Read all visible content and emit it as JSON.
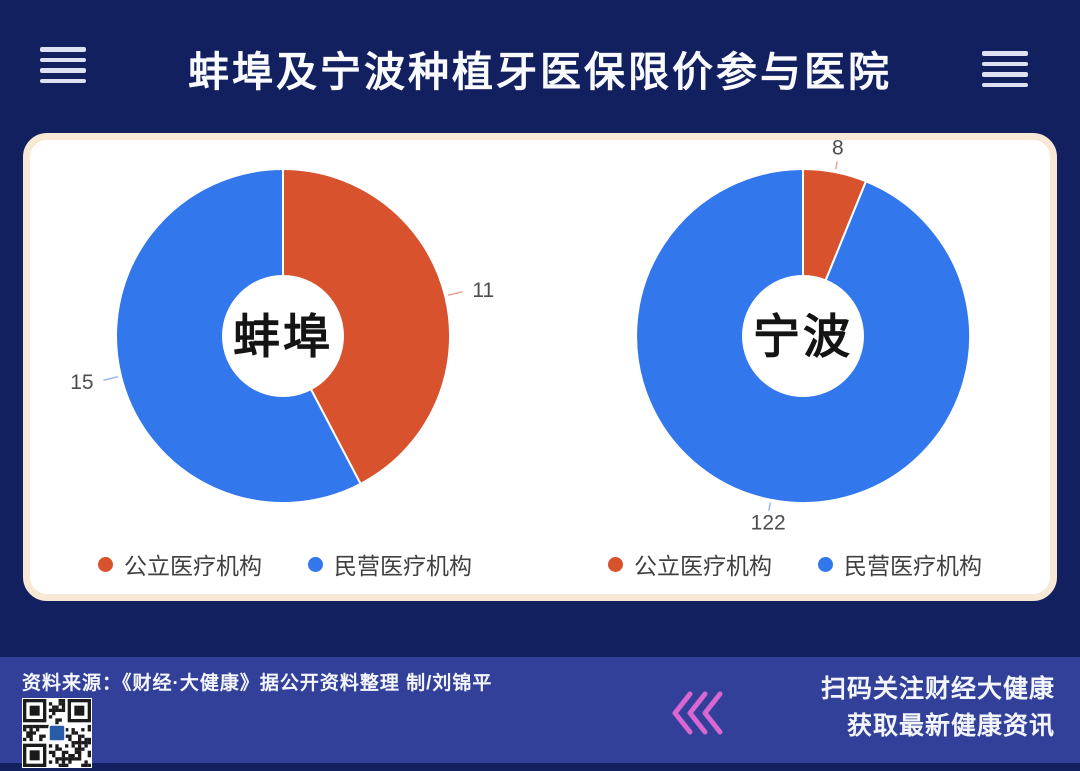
{
  "header": {
    "title": "蚌埠及宁波种植牙医保限价参与医院",
    "left_icon": "menu-lines-icon",
    "right_icon": "menu-lines-icon"
  },
  "chart_data": [
    {
      "type": "pie",
      "variant": "donut",
      "title": "蚌埠",
      "labels": [
        "公立医疗机构",
        "民营医疗机构"
      ],
      "values": [
        11,
        15
      ],
      "data_labels": [
        "11",
        "15"
      ],
      "colors": [
        "#D8522D",
        "#3377EC"
      ],
      "start_angle_deg": -90,
      "direction": "clockwise",
      "legend_position": "bottom",
      "inner_label_color": "#141414",
      "value_label_color": "#4D4D4D"
    },
    {
      "type": "pie",
      "variant": "donut",
      "title": "宁波",
      "labels": [
        "公立医疗机构",
        "民营医疗机构"
      ],
      "values": [
        8,
        122
      ],
      "data_labels": [
        "8",
        "122"
      ],
      "colors": [
        "#D8522D",
        "#3377EC"
      ],
      "start_angle_deg": -90,
      "direction": "clockwise",
      "legend_position": "bottom",
      "inner_label_color": "#141414",
      "value_label_color": "#4D4D4D"
    }
  ],
  "footer": {
    "source": "资料来源：《财经·大健康》据公开资料整理 制/刘锦平",
    "qr": "qr-code",
    "follow_line1": "扫码关注财经大健康",
    "follow_line2": "获取最新健康资讯",
    "chevron_color": "#D966D1"
  },
  "colors": {
    "background": "#132060",
    "footer_band": "#334099",
    "card_border": "#F7E9D6",
    "card_background": "#FFFFFF",
    "title_text": "#FAFBFF",
    "public_series": "#D8522D",
    "private_series": "#3377EC"
  }
}
